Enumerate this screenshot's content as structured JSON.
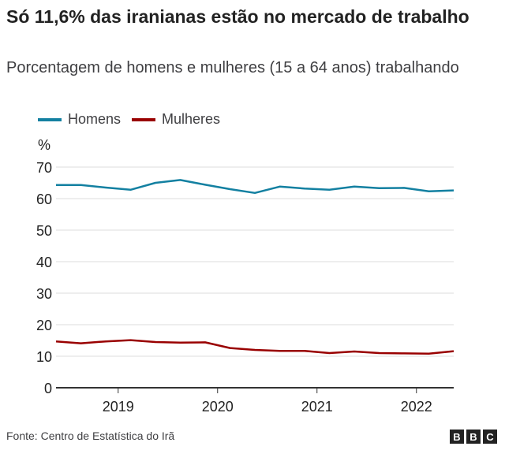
{
  "title": "Só 11,6% das iranianas estão no mercado de trabalho",
  "subtitle": "Porcentagem de homens e mulheres (15 a 64 anos) trabalhando",
  "footer": "Fonte: Centro de Estatística do Irã",
  "logo": [
    "B",
    "B",
    "C"
  ],
  "chart_data": {
    "type": "line",
    "title": "Só 11,6% das iranianas estão no mercado de trabalho",
    "subtitle": "Porcentagem de homens e mulheres (15 a 64 anos) trabalhando",
    "ylabel": "%",
    "ylim": [
      0,
      70
    ],
    "yticks": [
      0,
      10,
      20,
      30,
      40,
      50,
      60,
      70
    ],
    "xticks": [
      2019,
      2020,
      2021,
      2022
    ],
    "xlim": [
      2018.375,
      2022.375
    ],
    "grid": true,
    "legend": "top-left",
    "x": [
      2018.375,
      2018.625,
      2018.875,
      2019.125,
      2019.375,
      2019.625,
      2019.875,
      2020.125,
      2020.375,
      2020.625,
      2020.875,
      2021.125,
      2021.375,
      2021.625,
      2021.875,
      2022.125,
      2022.375
    ],
    "series": [
      {
        "name": "Homens",
        "color": "#1380a1",
        "values": [
          64.3,
          64.3,
          63.5,
          62.8,
          65.0,
          65.9,
          64.4,
          63.0,
          61.8,
          63.8,
          63.2,
          62.8,
          63.8,
          63.3,
          63.4,
          62.3,
          62.6
        ]
      },
      {
        "name": "Mulheres",
        "color": "#990000",
        "values": [
          14.7,
          14.1,
          14.7,
          15.1,
          14.5,
          14.3,
          14.4,
          12.6,
          12.0,
          11.7,
          11.7,
          11.0,
          11.5,
          11.0,
          10.9,
          10.8,
          11.6
        ]
      }
    ]
  }
}
